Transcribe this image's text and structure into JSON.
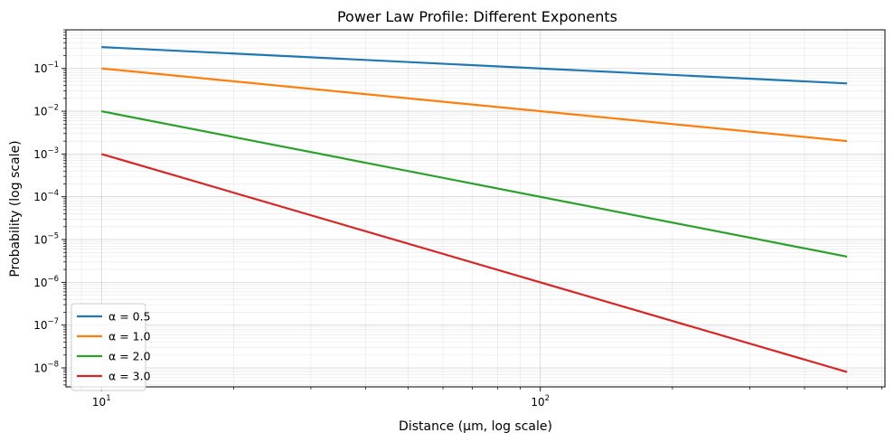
{
  "chart_data": {
    "type": "line",
    "title": "Power Law Profile: Different Exponents",
    "xlabel": "Distance (μm, log scale)",
    "ylabel": "Probability (log scale)",
    "xscale": "log",
    "yscale": "log",
    "xlim": [
      8.3,
      610
    ],
    "ylim": [
      3.6e-09,
      0.8
    ],
    "grid": "on (major and minor)",
    "legend_position": "lower-left",
    "x_tick_labels": [
      "10",
      "10"
    ],
    "x_tick_exponents": [
      "1",
      "2"
    ],
    "y_tick_labels": [
      "10",
      "10",
      "10",
      "10",
      "10",
      "10",
      "10",
      "10"
    ],
    "y_tick_exponents": [
      "−1",
      "−2",
      "−3",
      "−4",
      "−5",
      "−6",
      "−7",
      "−8"
    ],
    "x": [
      10,
      500
    ],
    "series": [
      {
        "name": "α = 0.5",
        "color": "#1f77b4",
        "values": [
          0.316,
          0.0447
        ]
      },
      {
        "name": "α = 1.0",
        "color": "#ff7f0e",
        "values": [
          0.1,
          0.002
        ]
      },
      {
        "name": "α = 2.0",
        "color": "#2ca02c",
        "values": [
          0.01,
          4e-06
        ]
      },
      {
        "name": "α = 3.0",
        "color": "#d62728",
        "values": [
          0.001,
          8e-09
        ]
      }
    ]
  }
}
